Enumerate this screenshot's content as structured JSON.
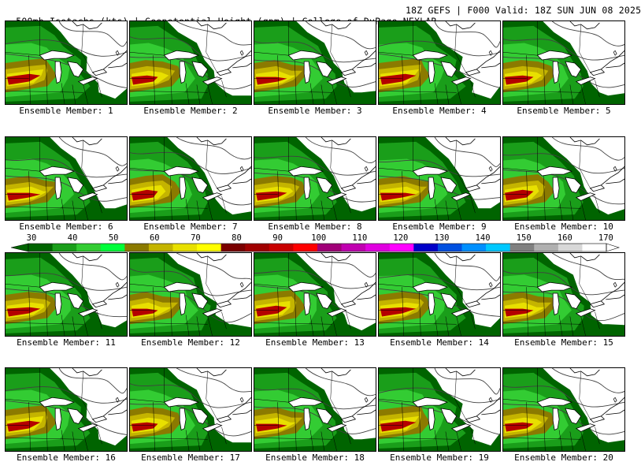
{
  "header": {
    "title": "500mb Isotachs (kts) | Geopotential Height (gpm) | College of DuPage NEXLAB",
    "valid": "18Z GEFS | F000 Valid: 18Z SUN JUN 08 2025"
  },
  "members": [
    {
      "label": "Ensemble Member: 1"
    },
    {
      "label": "Ensemble Member: 2"
    },
    {
      "label": "Ensemble Member: 3"
    },
    {
      "label": "Ensemble Member: 4"
    },
    {
      "label": "Ensemble Member: 5"
    },
    {
      "label": "Ensemble Member: 6"
    },
    {
      "label": "Ensemble Member: 7"
    },
    {
      "label": "Ensemble Member: 8"
    },
    {
      "label": "Ensemble Member: 9"
    },
    {
      "label": "Ensemble Member: 10"
    },
    {
      "label": "Ensemble Member: 11"
    },
    {
      "label": "Ensemble Member: 12"
    },
    {
      "label": "Ensemble Member: 13"
    },
    {
      "label": "Ensemble Member: 14"
    },
    {
      "label": "Ensemble Member: 15"
    },
    {
      "label": "Ensemble Member: 16"
    },
    {
      "label": "Ensemble Member: 17"
    },
    {
      "label": "Ensemble Member: 18"
    },
    {
      "label": "Ensemble Member: 19"
    },
    {
      "label": "Ensemble Member: 20"
    }
  ],
  "colorbar": {
    "labels": [
      "30",
      "40",
      "50",
      "60",
      "70",
      "80",
      "90",
      "100",
      "110",
      "120",
      "130",
      "140",
      "150",
      "160",
      "170"
    ],
    "colors": [
      "#006400",
      "#1a9e1a",
      "#33cc33",
      "#00ff3a",
      "#8b7a00",
      "#c4b400",
      "#e8e000",
      "#ffff00",
      "#7a0000",
      "#a00000",
      "#c80000",
      "#ff0000",
      "#a00078",
      "#c000b0",
      "#e000e0",
      "#ff00ff",
      "#0000c8",
      "#0050e0",
      "#0090ff",
      "#00c8ff",
      "#808080",
      "#b0b0b0",
      "#d8d8d8",
      "#ffffff"
    ]
  },
  "map_colors": {
    "green_dark": "#006400",
    "green_mid": "#1a9e1a",
    "green_light": "#33cc33",
    "olive": "#8b7a00",
    "gold": "#c4b400",
    "yellow": "#e8e000",
    "red": "#b40000"
  }
}
